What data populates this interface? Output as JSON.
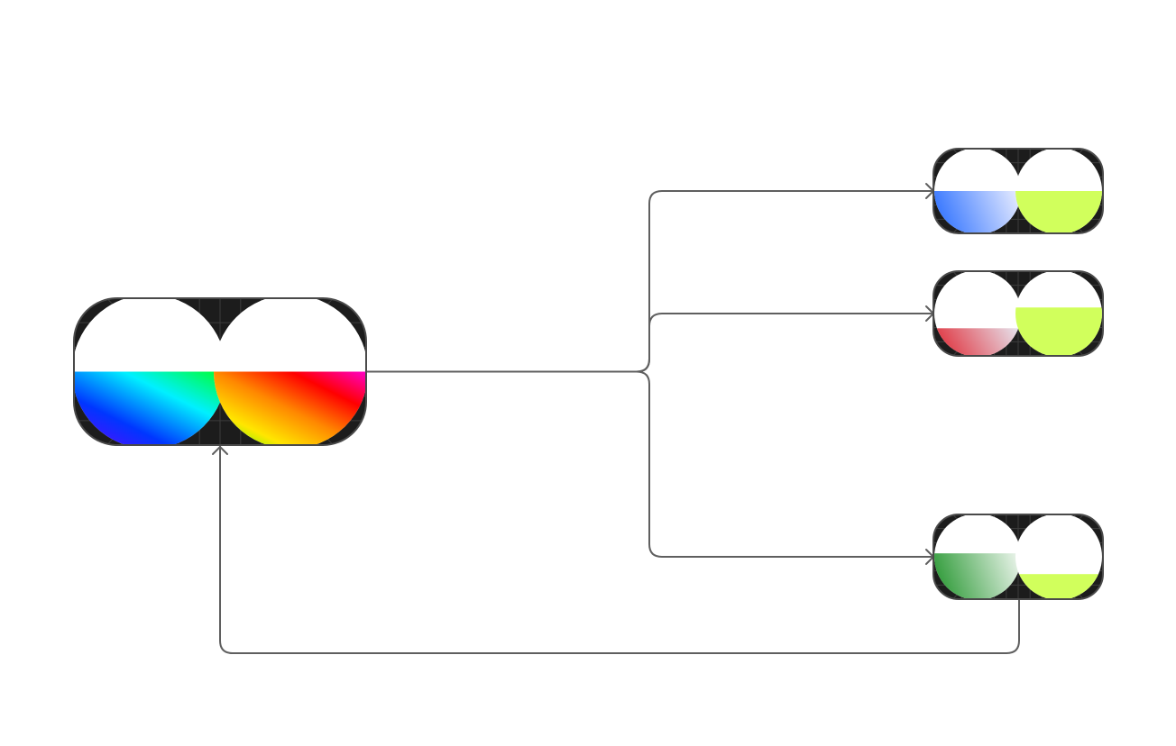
{
  "diagram": {
    "nodes": [
      {
        "id": "source",
        "name": "source-node",
        "left_fill": {
          "type": "spectrum",
          "stops": [
            "#6a00ff",
            "#0036ff",
            "#00f0ff",
            "#00ff2a"
          ],
          "level": 0.5
        },
        "right_fill": {
          "type": "spectrum",
          "stops": [
            "#33ff00",
            "#ffe600",
            "#ff8800",
            "#ff0000",
            "#ff00cc"
          ],
          "level": 0.5
        }
      },
      {
        "id": "blue",
        "name": "blue-output-node",
        "left_fill": {
          "type": "gradient",
          "stops": [
            "#3d7bff",
            "#ecefff"
          ],
          "level": 0.5
        },
        "right_fill": {
          "type": "solid",
          "color": "#d1ff5c",
          "level": 0.5
        }
      },
      {
        "id": "red",
        "name": "red-output-node",
        "left_fill": {
          "type": "gradient",
          "stops": [
            "#e03a45",
            "#e6e8f2"
          ],
          "level": 0.33
        },
        "right_fill": {
          "type": "solid",
          "color": "#d1ff5c",
          "level": 0.57
        }
      },
      {
        "id": "green",
        "name": "green-output-node",
        "left_fill": {
          "type": "gradient",
          "stops": [
            "#3aa043",
            "#f1f7f1"
          ],
          "level": 0.54
        },
        "right_fill": {
          "type": "solid",
          "color": "#d1ff5c",
          "level": 0.3
        }
      }
    ],
    "edges": [
      {
        "from": "source",
        "to": "blue",
        "name": "edge-source-to-blue"
      },
      {
        "from": "source",
        "to": "red",
        "name": "edge-source-to-red"
      },
      {
        "from": "source",
        "to": "green",
        "name": "edge-source-to-green"
      },
      {
        "from": "green",
        "to": "source",
        "name": "edge-green-to-source"
      }
    ],
    "colors": {
      "edge": "#5f5f5f",
      "card_background": "#1c1c1c",
      "card_border": "#4a4a4a",
      "accent_lime": "#d1ff5c"
    }
  }
}
